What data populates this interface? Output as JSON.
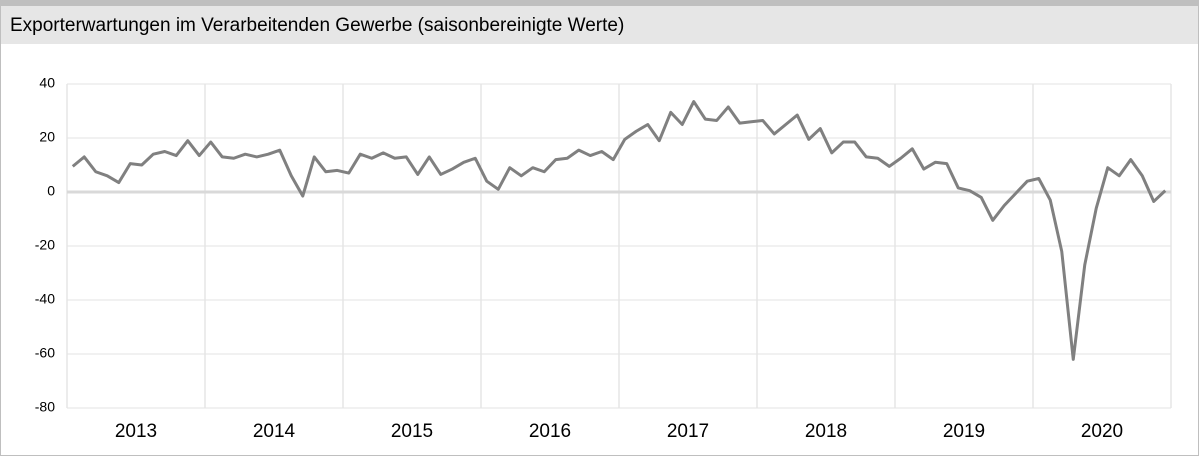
{
  "chart_data": {
    "type": "line",
    "title": "Exporterwartungen im Verarbeitenden Gewerbe (saisonbereinigte Werte)",
    "categories": [
      null,
      null,
      null,
      null,
      null,
      null,
      "2013",
      null,
      null,
      null,
      null,
      null,
      null,
      null,
      null,
      null,
      null,
      null,
      "2014",
      null,
      null,
      null,
      null,
      null,
      null,
      null,
      null,
      null,
      null,
      null,
      "2015",
      null,
      null,
      null,
      null,
      null,
      null,
      null,
      null,
      null,
      null,
      null,
      "2016",
      null,
      null,
      null,
      null,
      null,
      null,
      null,
      null,
      null,
      null,
      null,
      "2017",
      null,
      null,
      null,
      null,
      null,
      null,
      null,
      null,
      null,
      null,
      null,
      "2018",
      null,
      null,
      null,
      null,
      null,
      null,
      null,
      null,
      null,
      null,
      null,
      "2019",
      null,
      null,
      null,
      null,
      null,
      null,
      null,
      null,
      null,
      null,
      null,
      "2020",
      null,
      null,
      null,
      null,
      null
    ],
    "series": [
      {
        "color": "#808080",
        "values": [
          9.5,
          13,
          7.5,
          6,
          3.5,
          10.5,
          10,
          14,
          15,
          13.5,
          19,
          13.5,
          18.5,
          13,
          12.5,
          14,
          13,
          14,
          15.5,
          6,
          -1.5,
          13,
          7.5,
          8,
          7,
          14,
          12.5,
          14.5,
          12.5,
          13,
          6.5,
          13,
          6.5,
          8.5,
          11,
          12.5,
          4,
          1,
          9,
          6,
          9,
          7.5,
          12,
          12.5,
          15.5,
          13.5,
          15,
          12,
          19.5,
          22.5,
          25,
          19,
          29.5,
          25,
          33.5,
          27,
          26.5,
          31.5,
          25.5,
          26,
          26.5,
          21.5,
          25,
          28.5,
          19.5,
          23.5,
          14.5,
          18.5,
          18.5,
          13,
          12.5,
          9.5,
          12.5,
          16,
          8.5,
          11,
          10.5,
          1.5,
          0.5,
          -2,
          -10.5,
          -5,
          -0.5,
          4,
          5,
          -3,
          -22,
          -62,
          -27,
          -6,
          9,
          6,
          12,
          6,
          -3.5,
          0.5
        ]
      }
    ],
    "ylim": [
      -80,
      40
    ],
    "yticks": [
      -80,
      -60,
      -40,
      -20,
      0,
      20,
      40
    ],
    "grid": true
  }
}
